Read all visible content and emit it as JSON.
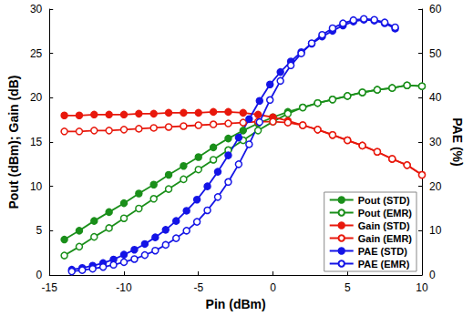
{
  "chart_data": {
    "type": "line",
    "x_label": "Pin (dBm)",
    "y_label": "Pout (dBm); Gain (dB)",
    "y2_label": "PAE (%)",
    "xlim": [
      -15,
      10
    ],
    "xticks": [
      -15,
      -10,
      -5,
      0,
      5,
      10
    ],
    "ylim": [
      0,
      30
    ],
    "yticks": [
      0,
      5,
      10,
      15,
      20,
      25,
      30
    ],
    "y2lim": [
      0,
      60
    ],
    "y2ticks": [
      0,
      10,
      20,
      30,
      40,
      50,
      60
    ],
    "grid": false,
    "legend": "lower right",
    "series": [
      {
        "name": "Pout (STD)",
        "color": "#1a8f1a",
        "marker": "circle",
        "axis": "y",
        "x": [
          -14,
          -13,
          -12,
          -11,
          -10,
          -9,
          -8,
          -7,
          -6,
          -5,
          -4,
          -3,
          -2,
          -1,
          0,
          1,
          2,
          3,
          4,
          5,
          6,
          7,
          8,
          9,
          10
        ],
        "values": [
          4.0,
          5.0,
          6.1,
          7.1,
          8.1,
          9.2,
          10.2,
          11.3,
          12.3,
          13.3,
          14.4,
          15.4,
          16.3,
          17.1,
          17.8,
          18.4,
          18.9,
          19.4,
          19.8,
          20.2,
          20.6,
          20.9,
          21.1,
          21.4,
          21.3
        ]
      },
      {
        "name": "Pout (EMR)",
        "color": "#1a8f1a",
        "marker": "open_circle",
        "axis": "y",
        "x": [
          -14,
          -13,
          -12,
          -11,
          -10,
          -9,
          -8,
          -7,
          -6,
          -5,
          -4,
          -3,
          -2,
          -1,
          0,
          1,
          2,
          3,
          4,
          5,
          6,
          7,
          8,
          9,
          10
        ],
        "values": [
          2.2,
          3.2,
          4.3,
          5.3,
          6.4,
          7.5,
          8.6,
          9.7,
          10.8,
          11.9,
          13.0,
          14.1,
          15.2,
          16.3,
          17.3,
          18.2,
          18.9,
          19.4,
          19.8,
          20.2,
          20.6,
          20.9,
          21.1,
          21.4,
          21.3
        ]
      },
      {
        "name": "Gain (STD)",
        "color": "#e8180c",
        "marker": "circle",
        "axis": "y",
        "x": [
          -14,
          -13,
          -12,
          -11,
          -10,
          -9,
          -8,
          -7,
          -6,
          -5,
          -4,
          -3,
          -2,
          -1,
          0,
          1,
          2,
          3,
          4,
          5,
          6,
          7,
          8,
          9,
          10
        ],
        "values": [
          18.0,
          18.0,
          18.1,
          18.1,
          18.1,
          18.2,
          18.2,
          18.3,
          18.3,
          18.3,
          18.4,
          18.4,
          18.3,
          18.1,
          17.8,
          17.4,
          16.9,
          16.4,
          15.8,
          15.2,
          14.6,
          13.9,
          13.1,
          12.4,
          11.3
        ]
      },
      {
        "name": "Gain (EMR)",
        "color": "#e8180c",
        "marker": "open_circle",
        "axis": "y",
        "x": [
          -14,
          -13,
          -12,
          -11,
          -10,
          -9,
          -8,
          -7,
          -6,
          -5,
          -4,
          -3,
          -2,
          -1,
          0,
          1,
          2,
          3,
          4,
          5,
          6,
          7,
          8,
          9,
          10
        ],
        "values": [
          16.2,
          16.2,
          16.3,
          16.3,
          16.4,
          16.5,
          16.6,
          16.7,
          16.8,
          16.9,
          17.0,
          17.1,
          17.2,
          17.3,
          17.3,
          17.2,
          16.9,
          16.4,
          15.8,
          15.2,
          14.6,
          13.9,
          13.1,
          12.4,
          11.3
        ]
      },
      {
        "name": "PAE (STD)",
        "color": "#1414e6",
        "marker": "circle",
        "axis": "y2",
        "x": [
          -13.5,
          -12.8,
          -12.1,
          -11.4,
          -10.7,
          -10.0,
          -9.3,
          -8.6,
          -7.9,
          -7.2,
          -6.5,
          -5.8,
          -5.1,
          -4.4,
          -3.7,
          -3.0,
          -2.3,
          -1.6,
          -0.9,
          -0.2,
          0.5,
          1.2,
          1.9,
          2.6,
          3.3,
          4.0,
          4.7,
          5.4,
          6.1,
          6.8,
          7.5,
          8.2
        ],
        "values": [
          1.2,
          1.6,
          2.1,
          2.7,
          3.5,
          4.6,
          5.7,
          7.0,
          8.5,
          10.2,
          12.2,
          14.5,
          17.0,
          20.0,
          23.3,
          27.0,
          31.0,
          35.2,
          39.3,
          43.0,
          45.8,
          48.2,
          50.3,
          52.2,
          53.8,
          55.1,
          56.3,
          57.2,
          57.6,
          57.4,
          56.8,
          55.6
        ]
      },
      {
        "name": "PAE (EMR)",
        "color": "#1414e6",
        "marker": "open_circle",
        "axis": "y2",
        "x": [
          -13.5,
          -12.8,
          -12.1,
          -11.4,
          -10.7,
          -10.0,
          -9.3,
          -8.6,
          -7.9,
          -7.2,
          -6.5,
          -5.8,
          -5.1,
          -4.4,
          -3.7,
          -3.0,
          -2.3,
          -1.6,
          -0.9,
          -0.2,
          0.5,
          1.2,
          1.9,
          2.6,
          3.3,
          4.0,
          4.7,
          5.4,
          6.1,
          6.8,
          7.5,
          8.2
        ],
        "values": [
          0.8,
          1.1,
          1.4,
          1.8,
          2.3,
          2.9,
          3.6,
          4.5,
          5.5,
          6.8,
          8.3,
          10.0,
          12.0,
          14.6,
          17.6,
          21.0,
          25.0,
          29.5,
          34.5,
          39.5,
          43.8,
          47.3,
          50.0,
          52.3,
          54.2,
          55.7,
          56.8,
          57.5,
          57.8,
          57.6,
          57.0,
          55.9
        ]
      }
    ]
  }
}
